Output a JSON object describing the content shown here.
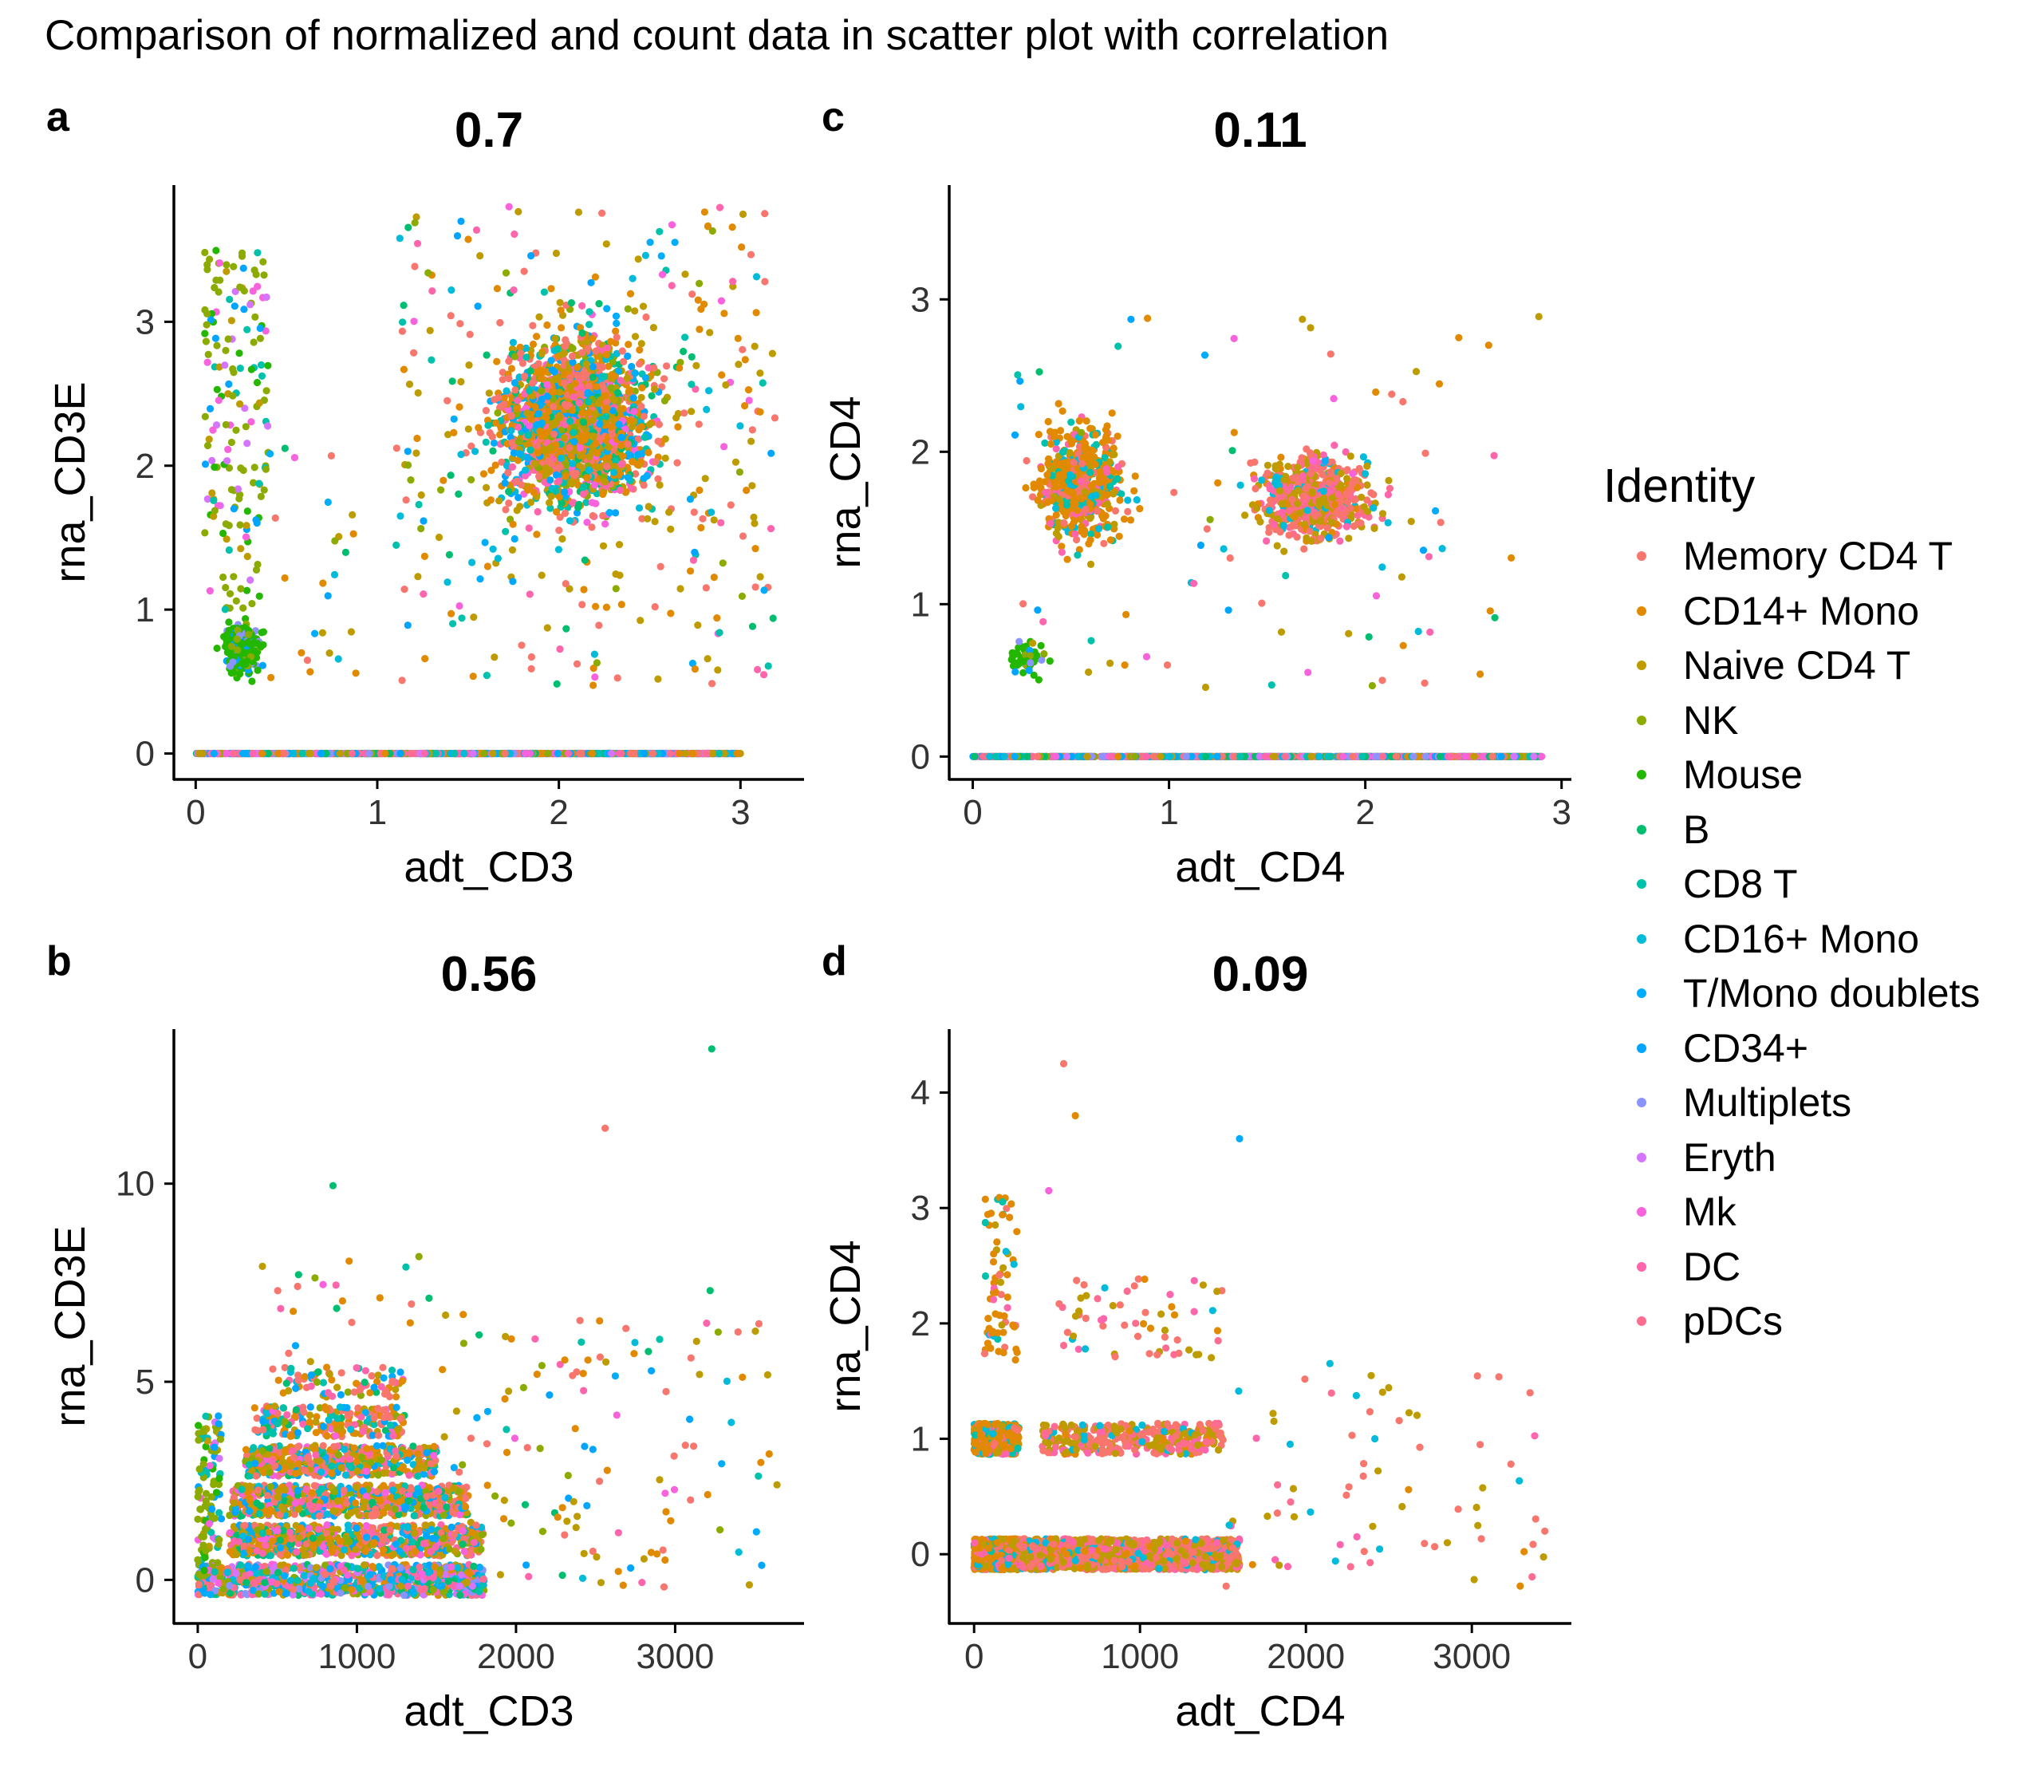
{
  "title": "Comparison of normalized and count data in scatter plot with correlation",
  "legend": {
    "title": "Identity",
    "items": [
      {
        "label": "Memory CD4 T",
        "color": "#F8766D"
      },
      {
        "label": "CD14+ Mono",
        "color": "#E18A00"
      },
      {
        "label": "Naive CD4 T",
        "color": "#BE9C00"
      },
      {
        "label": "NK",
        "color": "#8CAB00"
      },
      {
        "label": "Mouse",
        "color": "#24B700"
      },
      {
        "label": "B",
        "color": "#00BE70"
      },
      {
        "label": "CD8 T",
        "color": "#00C1AB"
      },
      {
        "label": "CD16+ Mono",
        "color": "#00BBDA"
      },
      {
        "label": "T/Mono doublets",
        "color": "#00ACFC"
      },
      {
        "label": "CD34+",
        "color": "#00A5FF"
      },
      {
        "label": "Multiplets",
        "color": "#8B93FF"
      },
      {
        "label": "Eryth",
        "color": "#D575FE"
      },
      {
        "label": "Mk",
        "color": "#F962DD"
      },
      {
        "label": "DC",
        "color": "#FF65AC"
      },
      {
        "label": "pDCs",
        "color": "#FF6C91"
      }
    ]
  },
  "chart_data": [
    {
      "type": "scatter",
      "panel_label": "a",
      "title": "0.7",
      "xlabel": "adt_CD3",
      "ylabel": "rna_CD3E",
      "xlim": [
        -0.12,
        3.35
      ],
      "ylim": [
        -0.18,
        3.95
      ],
      "xticks": [
        "0",
        "1",
        "2",
        "3"
      ],
      "yticks": [
        "0",
        "1",
        "2",
        "3"
      ],
      "clusters": [
        {
          "x": [
            1.3,
            2.9
          ],
          "y": [
            1.2,
            3.4
          ],
          "n": 1900,
          "shape": "ellipse",
          "mix": "t"
        },
        {
          "x": [
            1.1,
            3.2
          ],
          "y": [
            0.45,
            3.8
          ],
          "n": 350,
          "shape": "box",
          "mix": "t"
        },
        {
          "x": [
            0.08,
            0.45
          ],
          "y": [
            0.38,
            1.05
          ],
          "n": 260,
          "shape": "ellipse",
          "mix": "mouse"
        },
        {
          "x": [
            0.05,
            0.4
          ],
          "y": [
            1.0,
            3.5
          ],
          "n": 170,
          "shape": "box",
          "mix": "nk"
        },
        {
          "x": [
            0.4,
            0.9
          ],
          "y": [
            0.4,
            2.2
          ],
          "n": 25,
          "shape": "box",
          "mix": "t"
        },
        {
          "x": [
            0.0,
            3.0
          ],
          "y": [
            0.0,
            0.0
          ],
          "n": 1600,
          "shape": "line",
          "mix": "all"
        }
      ],
      "grid": false
    },
    {
      "type": "scatter",
      "panel_label": "c",
      "title": "0.11",
      "xlabel": "adt_CD4",
      "ylabel": "rna_CD4",
      "xlim": [
        -0.12,
        3.05
      ],
      "ylim": [
        -0.15,
        3.75
      ],
      "xticks": [
        "0",
        "1",
        "2",
        "3"
      ],
      "yticks": [
        "0",
        "1",
        "2",
        "3"
      ],
      "clusters": [
        {
          "x": [
            0.15,
            0.95
          ],
          "y": [
            1.1,
            2.5
          ],
          "n": 620,
          "shape": "ellipse",
          "mix": "mono"
        },
        {
          "x": [
            1.2,
            2.3
          ],
          "y": [
            1.2,
            2.2
          ],
          "n": 620,
          "shape": "ellipse",
          "mix": "t4"
        },
        {
          "x": [
            0.1,
            0.45
          ],
          "y": [
            0.4,
            0.9
          ],
          "n": 55,
          "shape": "ellipse",
          "mix": "mouse"
        },
        {
          "x": [
            0.2,
            2.9
          ],
          "y": [
            0.45,
            2.9
          ],
          "n": 90,
          "shape": "box",
          "mix": "t"
        },
        {
          "x": [
            0.0,
            2.9
          ],
          "y": [
            0.0,
            0.0
          ],
          "n": 1500,
          "shape": "line",
          "mix": "all"
        }
      ],
      "grid": false
    },
    {
      "type": "scatter",
      "panel_label": "b",
      "title": "0.56",
      "xlabel": "adt_CD3",
      "ylabel": "rna_CD3E",
      "xlim": [
        -150,
        3810
      ],
      "ylim": [
        -1.1,
        13.9
      ],
      "xticks": [
        "0",
        "1000",
        "2000",
        "3000"
      ],
      "yticks": [
        "0",
        "5",
        "10"
      ],
      "clusters": [
        {
          "x": [
            0,
            1800
          ],
          "y": [
            0,
            0
          ],
          "n": 900,
          "shape": "band",
          "mix": "all"
        },
        {
          "x": [
            200,
            1800
          ],
          "y": [
            1,
            1
          ],
          "n": 700,
          "shape": "band",
          "mix": "t"
        },
        {
          "x": [
            200,
            1700
          ],
          "y": [
            2,
            2
          ],
          "n": 650,
          "shape": "band",
          "mix": "t"
        },
        {
          "x": [
            300,
            1500
          ],
          "y": [
            3,
            3
          ],
          "n": 450,
          "shape": "band",
          "mix": "t"
        },
        {
          "x": [
            350,
            1300
          ],
          "y": [
            4,
            4
          ],
          "n": 200,
          "shape": "band",
          "mix": "t"
        },
        {
          "x": [
            450,
            1300
          ],
          "y": [
            5,
            5
          ],
          "n": 80,
          "shape": "band",
          "mix": "t"
        },
        {
          "x": [
            0,
            150
          ],
          "y": [
            0,
            4.2
          ],
          "n": 120,
          "shape": "band",
          "mix": "nk"
        },
        {
          "x": [
            1500,
            3600
          ],
          "y": [
            -0.3,
            6.7
          ],
          "n": 130,
          "shape": "box",
          "mix": "t"
        },
        {
          "x": [
            400,
            1700
          ],
          "y": [
            5.5,
            8.3
          ],
          "n": 25,
          "shape": "box",
          "mix": "t"
        }
      ],
      "points": [
        {
          "x": 3230,
          "y": 13.4,
          "color": "#00BE70"
        },
        {
          "x": 3220,
          "y": 7.3,
          "color": "#00BE70"
        },
        {
          "x": 2560,
          "y": 11.4,
          "color": "#F8766D"
        },
        {
          "x": 850,
          "y": 9.95,
          "color": "#00BE70"
        },
        {
          "x": 3640,
          "y": 2.4,
          "color": "#BE9C00"
        },
        {
          "x": 3400,
          "y": 0.7,
          "color": "#00BBDA"
        }
      ],
      "grid": false
    },
    {
      "type": "scatter",
      "panel_label": "d",
      "title": "0.09",
      "xlabel": "adt_CD4",
      "ylabel": "rna_CD4",
      "xlim": [
        -150,
        3600
      ],
      "ylim": [
        -0.6,
        4.55
      ],
      "xticks": [
        "0",
        "1000",
        "2000",
        "3000"
      ],
      "yticks": [
        "0",
        "1",
        "2",
        "3",
        "4"
      ],
      "clusters": [
        {
          "x": [
            0,
            270
          ],
          "y": [
            0,
            0
          ],
          "n": 700,
          "shape": "band",
          "mix": "mono"
        },
        {
          "x": [
            0,
            270
          ],
          "y": [
            1,
            1
          ],
          "n": 450,
          "shape": "band",
          "mix": "mono"
        },
        {
          "x": [
            270,
            1600
          ],
          "y": [
            0,
            0
          ],
          "n": 1300,
          "shape": "band",
          "mix": "t4"
        },
        {
          "x": [
            400,
            1500
          ],
          "y": [
            1,
            1
          ],
          "n": 350,
          "shape": "band",
          "mix": "t4"
        },
        {
          "x": [
            60,
            260
          ],
          "y": [
            1.6,
            3.1
          ],
          "n": 70,
          "shape": "box",
          "mix": "mono"
        },
        {
          "x": [
            500,
            1500
          ],
          "y": [
            1.7,
            2.4
          ],
          "n": 60,
          "shape": "box",
          "mix": "t4"
        },
        {
          "x": [
            1500,
            3450
          ],
          "y": [
            -0.3,
            1.7
          ],
          "n": 70,
          "shape": "box",
          "mix": "t4"
        }
      ],
      "points": [
        {
          "x": 540,
          "y": 4.25,
          "color": "#F8766D"
        },
        {
          "x": 610,
          "y": 3.8,
          "color": "#E18A00"
        },
        {
          "x": 1600,
          "y": 3.6,
          "color": "#00ACFC"
        },
        {
          "x": 450,
          "y": 3.15,
          "color": "#F962DD"
        },
        {
          "x": 3050,
          "y": 0.95,
          "color": "#F8766D"
        },
        {
          "x": 3440,
          "y": 0.2,
          "color": "#F8766D"
        }
      ],
      "grid": false
    }
  ]
}
